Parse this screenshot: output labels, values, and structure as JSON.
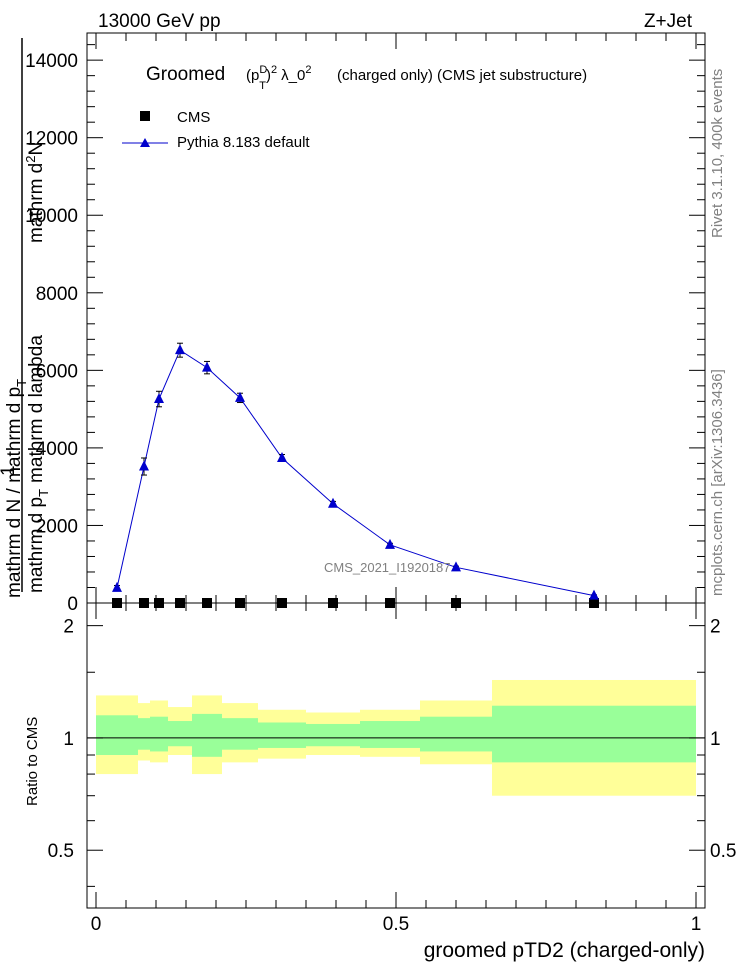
{
  "header": {
    "left": "13000 GeV pp",
    "right": "Z+Jet"
  },
  "side_labels": {
    "rivet": "Rivet 3.1.10,  400k events",
    "mcplots": "mcplots.cern.ch [arXiv:1306.3436]"
  },
  "chart_data": [
    {
      "type": "line",
      "title_main": "Groomed",
      "title_formula": "(p",
      "title_sup_D": "D",
      "title_sub_T": "T",
      "title_close": ")",
      "title_sup_2": "2",
      "title_lambda": "λ_0",
      "title_sup_2b": "2",
      "title_rest": "(charged only) (CMS jet substructure)",
      "ylabel_top": "mathrm d",
      "ylabel_top_sup": "2",
      "ylabel_top_N": "N",
      "ylabel_bottom": "mathrm d p",
      "ylabel_bottom_sub": "T",
      "ylabel_bottom_rest": "mathrm d lambda",
      "ylabel_one": "1",
      "ylabel_den": "mathrm d N / mathrm d p",
      "ylabel_den_sub": "T",
      "xlim": [
        0,
        1
      ],
      "ylim": [
        0,
        14000
      ],
      "y_ticks": [
        "0",
        "2000",
        "4000",
        "6000",
        "8000",
        "10000",
        "12000",
        "14000"
      ],
      "y_tick_values": [
        0,
        2000,
        4000,
        6000,
        8000,
        10000,
        12000,
        14000
      ],
      "watermark": "CMS_2021_I1920187",
      "legend": [
        {
          "name": "CMS",
          "marker": "square",
          "color": "#000000"
        },
        {
          "name": "Pythia 8.183 default",
          "marker": "triangle",
          "color": "#0000cc"
        }
      ],
      "series": [
        {
          "name": "CMS",
          "color": "#000000",
          "x": [
            0.035,
            0.08,
            0.105,
            0.14,
            0.185,
            0.24,
            0.31,
            0.395,
            0.49,
            0.6,
            0.83
          ],
          "values": [
            0,
            0,
            0,
            0,
            0,
            0,
            0,
            0,
            0,
            0,
            0
          ]
        },
        {
          "name": "Pythia 8.183 default",
          "color": "#0000cc",
          "x": [
            0.035,
            0.08,
            0.105,
            0.14,
            0.185,
            0.24,
            0.31,
            0.395,
            0.49,
            0.6,
            0.83
          ],
          "values": [
            390,
            3520,
            5260,
            6520,
            6070,
            5290,
            3740,
            2560,
            1500,
            920,
            190
          ],
          "errors": [
            60,
            220,
            200,
            180,
            160,
            120,
            90,
            60,
            40,
            30,
            20
          ]
        }
      ]
    },
    {
      "type": "area",
      "ylabel": "Ratio to CMS",
      "xlabel": "groomed pTD2 (charged-only)",
      "xlim": [
        0,
        1
      ],
      "ylim": [
        0.35,
        2.3
      ],
      "x_ticks": [
        "0",
        "0.5",
        "1"
      ],
      "x_tick_values": [
        0,
        0.5,
        1
      ],
      "y_ticks": [
        "0.5",
        "1",
        "2"
      ],
      "y_tick_values": [
        0.5,
        1,
        2
      ],
      "bins": [
        0,
        0.07,
        0.09,
        0.12,
        0.16,
        0.21,
        0.27,
        0.35,
        0.44,
        0.54,
        0.66,
        1.0
      ],
      "band_outer_low": [
        0.8,
        0.87,
        0.86,
        0.9,
        0.8,
        0.86,
        0.88,
        0.9,
        0.89,
        0.85,
        0.7
      ],
      "band_outer_high": [
        1.3,
        1.24,
        1.26,
        1.21,
        1.3,
        1.24,
        1.19,
        1.17,
        1.19,
        1.26,
        1.43
      ],
      "band_inner_low": [
        0.9,
        0.93,
        0.92,
        0.95,
        0.89,
        0.93,
        0.94,
        0.95,
        0.94,
        0.92,
        0.86
      ],
      "band_inner_high": [
        1.15,
        1.13,
        1.14,
        1.11,
        1.16,
        1.13,
        1.1,
        1.09,
        1.11,
        1.14,
        1.22
      ],
      "band_colors": {
        "outer": "#ffff99",
        "inner": "#99ff99"
      }
    }
  ]
}
